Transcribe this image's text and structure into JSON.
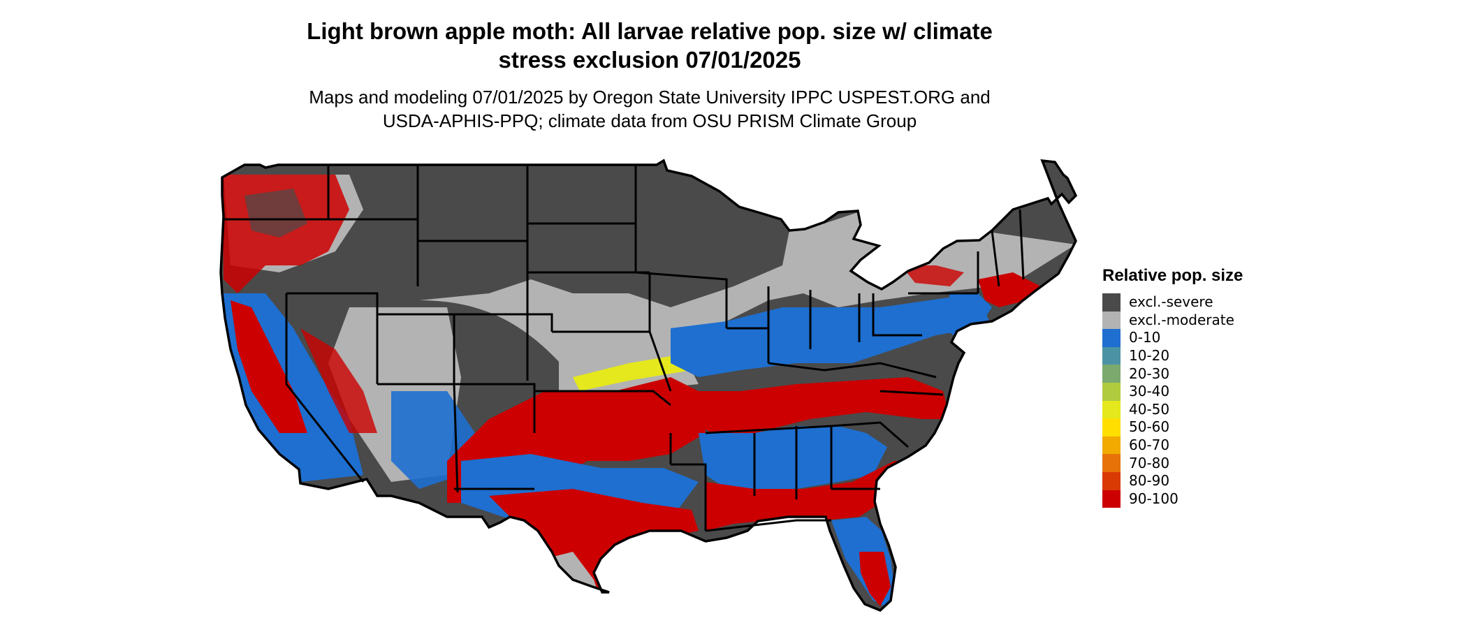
{
  "title": {
    "line1": "Light brown apple moth: All larvae relative pop. size w/ climate",
    "line2": "stress exclusion 07/01/2025"
  },
  "subtitle": {
    "line1": "Maps and modeling 07/01/2025 by Oregon State University IPPC USPEST.ORG and",
    "line2": "USDA-APHIS-PPQ; climate data from OSU PRISM Climate Group"
  },
  "legend": {
    "title": "Relative pop. size",
    "items": [
      {
        "label": "excl.-severe",
        "color": "#4a4a4a"
      },
      {
        "label": "excl.-moderate",
        "color": "#b3b3b3"
      },
      {
        "label": "0-10",
        "color": "#1e6fd0"
      },
      {
        "label": "10-20",
        "color": "#4b93a4"
      },
      {
        "label": "20-30",
        "color": "#7ba96e"
      },
      {
        "label": "30-40",
        "color": "#b0cc3e"
      },
      {
        "label": "40-50",
        "color": "#e4e81c"
      },
      {
        "label": "50-60",
        "color": "#ffde00"
      },
      {
        "label": "60-70",
        "color": "#f2a900"
      },
      {
        "label": "70-80",
        "color": "#e67208"
      },
      {
        "label": "80-90",
        "color": "#d93a04"
      },
      {
        "label": "90-100",
        "color": "#cc0000"
      }
    ]
  },
  "map": {
    "region": "conterminous-united-states",
    "colors": {
      "severe": "#4a4a4a",
      "moderate": "#b3b3b3",
      "low": "#1e6fd0",
      "mid": "#e4e81c",
      "high": "#cc0000",
      "border": "#000000"
    }
  }
}
